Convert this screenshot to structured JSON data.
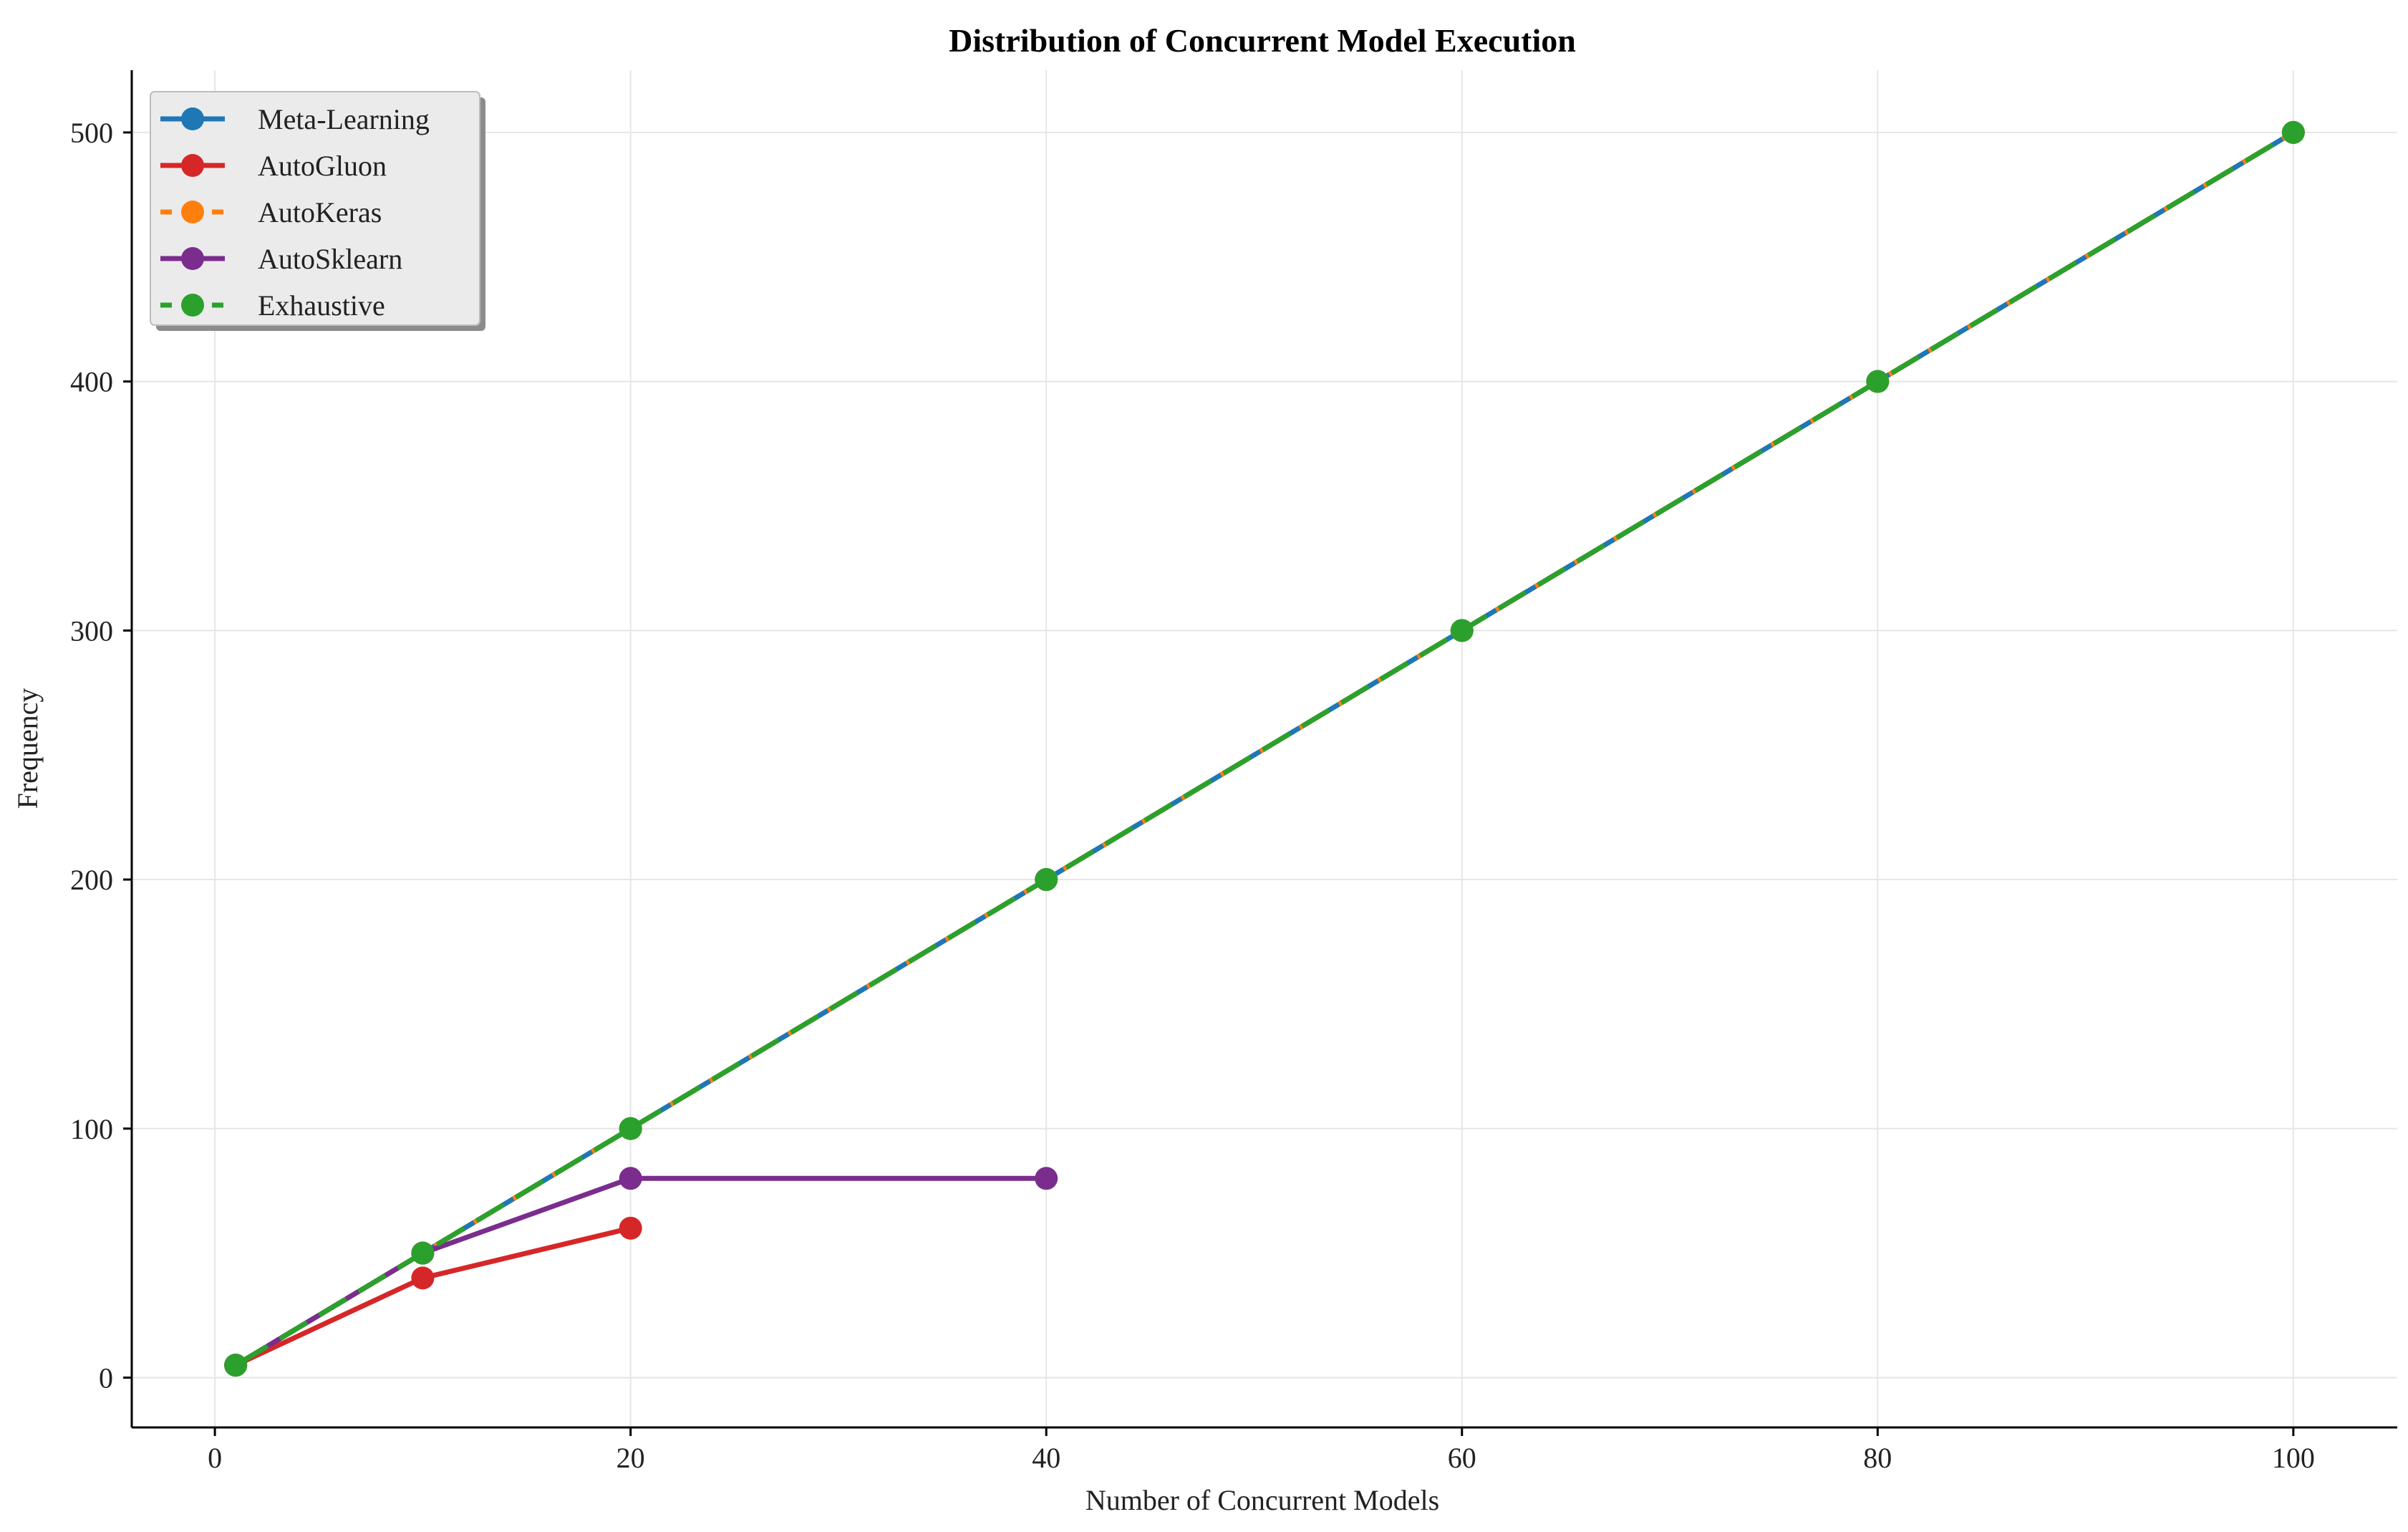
{
  "chart_data": {
    "type": "line",
    "title": "Distribution of Concurrent Model Execution",
    "xlabel": "Number of Concurrent Models",
    "ylabel": "Frequency",
    "xlim": [
      -4,
      105
    ],
    "ylim": [
      -20,
      525
    ],
    "xticks": [
      0,
      20,
      40,
      60,
      80,
      100
    ],
    "yticks": [
      0,
      100,
      200,
      300,
      400,
      500
    ],
    "grid": true,
    "legend_position": "top-left",
    "series": [
      {
        "name": "Meta-Learning",
        "color": "#1f77b4",
        "dashed": false,
        "x": [
          1,
          10,
          20,
          40,
          60,
          80,
          100
        ],
        "y": [
          5,
          50,
          100,
          200,
          300,
          400,
          500
        ]
      },
      {
        "name": "AutoGluon",
        "color": "#d62728",
        "dashed": false,
        "x": [
          1,
          10,
          20
        ],
        "y": [
          5,
          40,
          60
        ]
      },
      {
        "name": "AutoKeras",
        "color": "#ff7f0e",
        "dashed": true,
        "x": [
          1,
          10,
          20,
          40,
          60,
          80,
          100
        ],
        "y": [
          5,
          50,
          100,
          200,
          300,
          400,
          500
        ]
      },
      {
        "name": "AutoSklearn",
        "color": "#7b2d8e",
        "dashed": false,
        "x": [
          1,
          10,
          20,
          40
        ],
        "y": [
          5,
          50,
          80,
          80
        ]
      },
      {
        "name": "Exhaustive",
        "color": "#2ca02c",
        "dashed": true,
        "x": [
          1,
          10,
          20,
          40,
          60,
          80,
          100
        ],
        "y": [
          5,
          50,
          100,
          200,
          300,
          400,
          500
        ]
      }
    ]
  }
}
